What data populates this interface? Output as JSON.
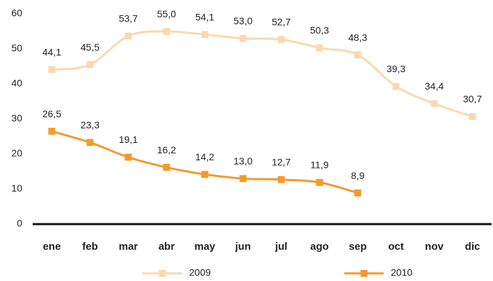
{
  "chart_data": {
    "type": "line",
    "categories": [
      "ene",
      "feb",
      "mar",
      "abr",
      "may",
      "jun",
      "jul",
      "ago",
      "sep",
      "oct",
      "nov",
      "dic"
    ],
    "series": [
      {
        "name": "2009",
        "color": "#fbd8b0",
        "values": [
          44.1,
          45.5,
          53.7,
          55.0,
          54.1,
          53.0,
          52.7,
          50.3,
          48.3,
          39.3,
          34.4,
          30.7
        ],
        "value_labels": [
          "44,1",
          "45,5",
          "53,7",
          "55,0",
          "54,1",
          "53,0",
          "52,7",
          "50,3",
          "48,3",
          "39,3",
          "34,4",
          "30,7"
        ]
      },
      {
        "name": "2010",
        "color": "#f39a2b",
        "values": [
          26.5,
          23.3,
          19.1,
          16.2,
          14.2,
          13.0,
          12.7,
          11.9,
          8.9,
          null,
          null,
          null
        ],
        "value_labels": [
          "26,5",
          "23,3",
          "19,1",
          "16,2",
          "14,2",
          "13,0",
          "12,7",
          "11,9",
          "8,9",
          null,
          null,
          null
        ]
      }
    ],
    "ylim": [
      0,
      60
    ],
    "yticks": [
      0,
      10,
      20,
      30,
      40,
      50,
      60
    ],
    "grid": false
  }
}
